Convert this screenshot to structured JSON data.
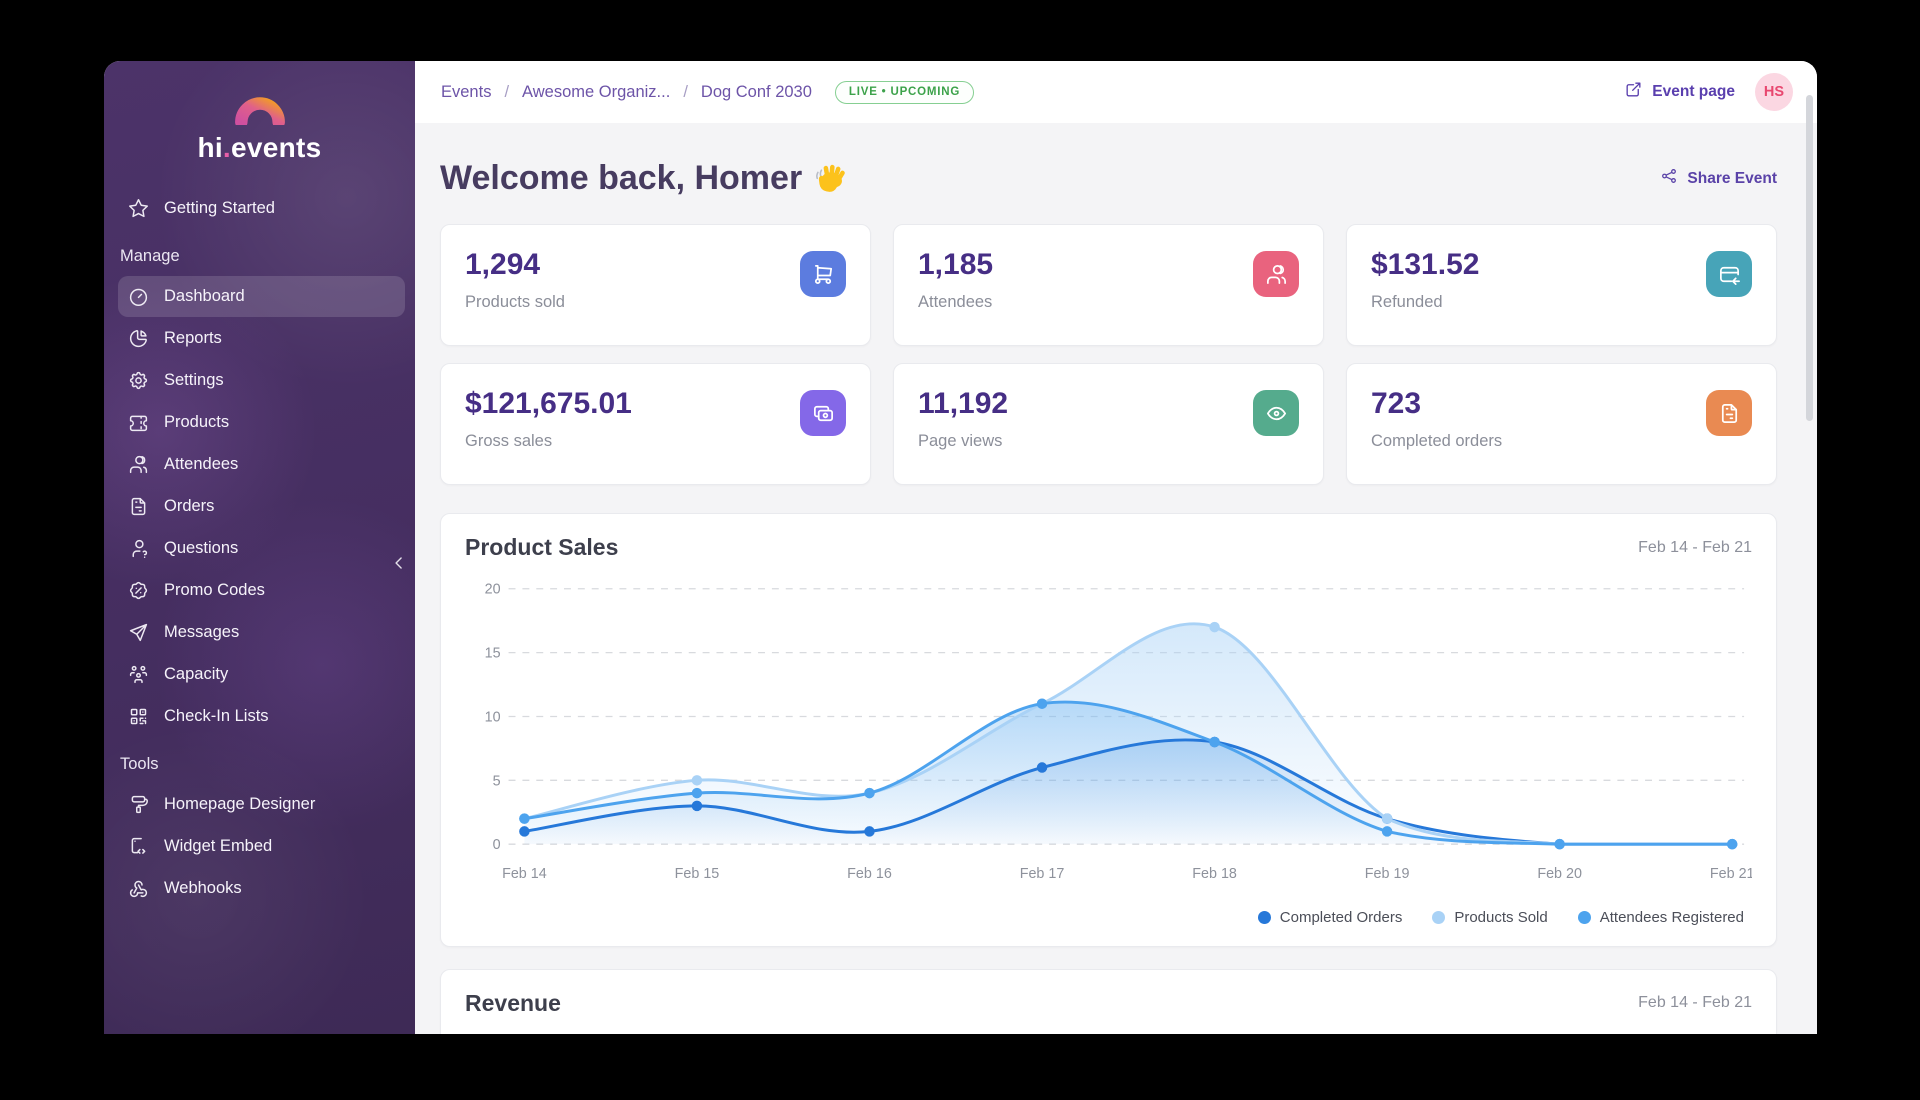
{
  "sidebar": {
    "logo_text_hi": "hi",
    "logo_text_dot": ".",
    "logo_text_events": "events",
    "sections": [
      {
        "header": "",
        "items": [
          {
            "label": "Getting Started",
            "icon": "star-icon",
            "active": false
          }
        ]
      },
      {
        "header": "Manage",
        "items": [
          {
            "label": "Dashboard",
            "icon": "dashboard-icon",
            "active": true
          },
          {
            "label": "Reports",
            "icon": "reports-icon",
            "active": false
          },
          {
            "label": "Settings",
            "icon": "settings-icon",
            "active": false
          },
          {
            "label": "Products",
            "icon": "products-icon",
            "active": false
          },
          {
            "label": "Attendees",
            "icon": "attendees-icon",
            "active": false
          },
          {
            "label": "Orders",
            "icon": "orders-icon",
            "active": false
          },
          {
            "label": "Questions",
            "icon": "questions-icon",
            "active": false
          },
          {
            "label": "Promo Codes",
            "icon": "promo-codes-icon",
            "active": false
          },
          {
            "label": "Messages",
            "icon": "messages-icon",
            "active": false
          },
          {
            "label": "Capacity",
            "icon": "capacity-icon",
            "active": false
          },
          {
            "label": "Check-In Lists",
            "icon": "check-in-lists-icon",
            "active": false
          }
        ]
      },
      {
        "header": "Tools",
        "items": [
          {
            "label": "Homepage Designer",
            "icon": "homepage-designer-icon",
            "active": false
          },
          {
            "label": "Widget Embed",
            "icon": "widget-embed-icon",
            "active": false
          },
          {
            "label": "Webhooks",
            "icon": "webhooks-icon",
            "active": false
          }
        ]
      }
    ]
  },
  "topbar": {
    "breadcrumb": [
      "Events",
      "Awesome Organiz...",
      "Dog Conf 2030"
    ],
    "status_badge": "LIVE • UPCOMING",
    "event_page_label": "Event page",
    "avatar_initials": "HS"
  },
  "header": {
    "greeting": "Welcome back, Homer",
    "share_event_label": "Share Event"
  },
  "stats": [
    {
      "value": "1,294",
      "label": "Products sold",
      "icon": "cart-icon",
      "color": "#5c7cdf"
    },
    {
      "value": "1,185",
      "label": "Attendees",
      "icon": "users-icon",
      "color": "#e9637e"
    },
    {
      "value": "$131.52",
      "label": "Refunded",
      "icon": "card-refund-icon",
      "color": "#47a4b8"
    },
    {
      "value": "$121,675.01",
      "label": "Gross sales",
      "icon": "cash-icon",
      "color": "#8468e8"
    },
    {
      "value": "11,192",
      "label": "Page views",
      "icon": "eye-icon",
      "color": "#55ab8d"
    },
    {
      "value": "723",
      "label": "Completed orders",
      "icon": "receipt-icon",
      "color": "#e98a52"
    }
  ],
  "chart_data": {
    "type": "line",
    "title": "Product Sales",
    "date_range": "Feb 14 - Feb 21",
    "x": [
      "Feb 14",
      "Feb 15",
      "Feb 16",
      "Feb 17",
      "Feb 18",
      "Feb 19",
      "Feb 20",
      "Feb 21"
    ],
    "series": [
      {
        "name": "Completed Orders",
        "color": "#2678d9",
        "values": [
          1,
          3,
          1,
          6,
          8,
          2,
          0,
          0
        ]
      },
      {
        "name": "Products Sold",
        "color": "#a9d2f6",
        "values": [
          2,
          5,
          4,
          11,
          17,
          2,
          0,
          0
        ]
      },
      {
        "name": "Attendees Registered",
        "color": "#4da3ee",
        "values": [
          2,
          4,
          4,
          11,
          8,
          1,
          0,
          0
        ]
      }
    ],
    "ylim": [
      0,
      20
    ],
    "yticks": [
      0,
      5,
      10,
      15,
      20
    ],
    "grid": "dashed horizontal",
    "smooth": true,
    "legend_position": "bottom-right"
  },
  "revenue_section": {
    "title": "Revenue",
    "date_range": "Feb 14 - Feb 21"
  }
}
